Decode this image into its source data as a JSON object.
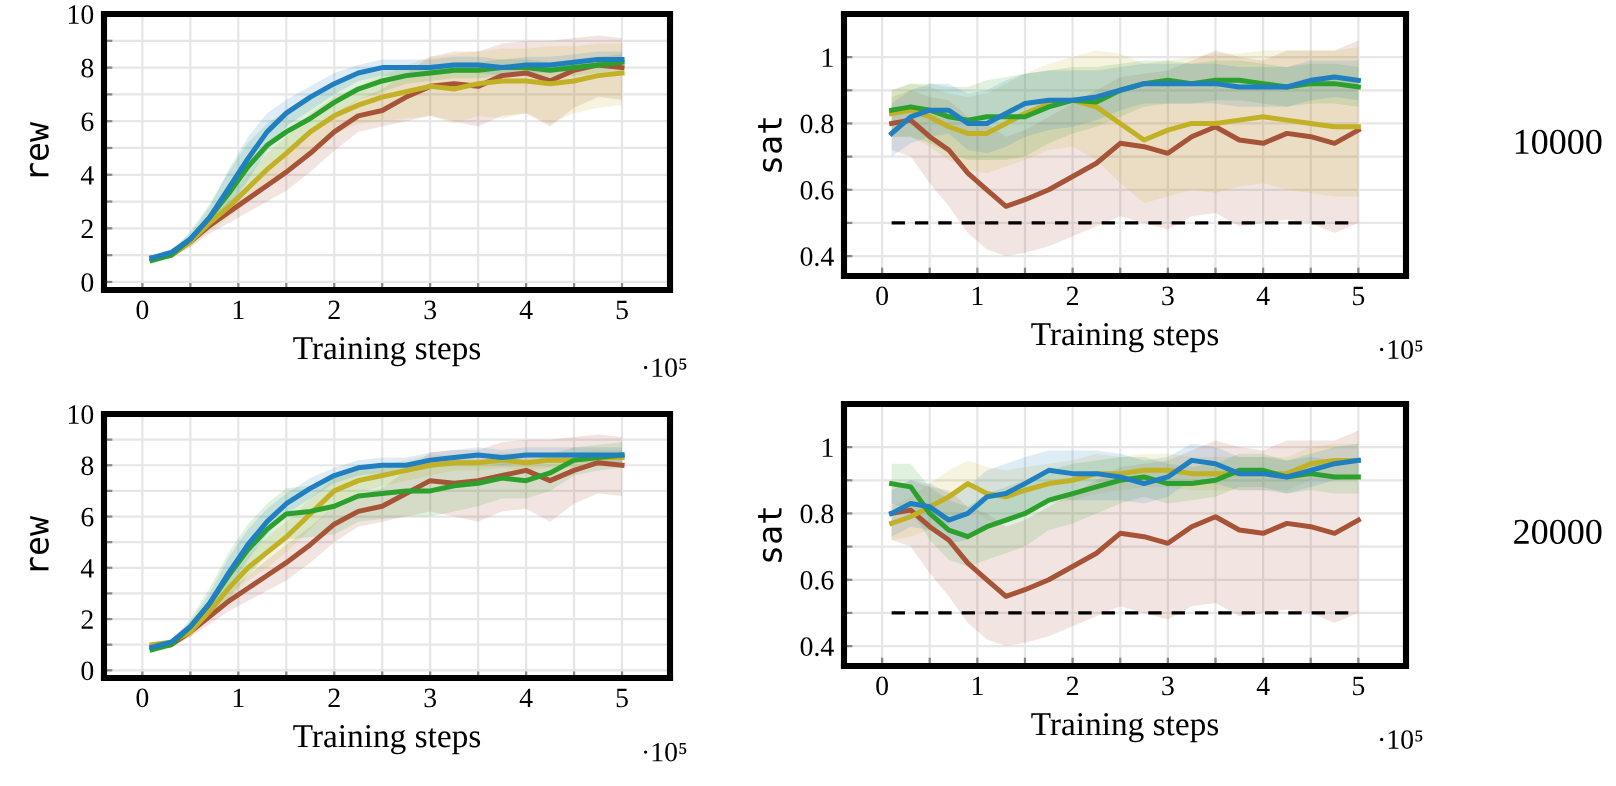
{
  "chart_data": [
    {
      "type": "line",
      "ylabel": "rew",
      "xlabel": "Training steps",
      "grid": true,
      "xlim": [
        -0.4,
        5.5
      ],
      "ylim": [
        -0.3,
        10
      ],
      "xticks": [
        0,
        {
          "value": 0.5,
          "label": null
        },
        1,
        {
          "value": 1.5,
          "label": null
        },
        2,
        {
          "value": 2.5,
          "label": null
        },
        3,
        {
          "value": 3.5,
          "label": null
        },
        4,
        {
          "value": 4.5,
          "label": null
        },
        5
      ],
      "yticks": [
        0,
        {
          "value": 1,
          "label": null
        },
        2,
        {
          "value": 3,
          "label": null
        },
        4,
        {
          "value": 5,
          "label": null
        },
        6,
        {
          "value": 7,
          "label": null
        },
        8,
        {
          "value": 9,
          "label": null
        },
        10
      ],
      "annotations": [
        "·10⁵"
      ],
      "x": [
        0.1,
        0.3,
        0.5,
        0.7,
        0.9,
        1.1,
        1.3,
        1.5,
        1.75,
        2.0,
        2.25,
        2.5,
        2.75,
        3.0,
        3.25,
        3.5,
        3.75,
        4.0,
        4.25,
        4.5,
        4.75,
        5.0
      ],
      "series": [
        {
          "color": "#a65338",
          "values": [
            0.9,
            1.0,
            1.5,
            2.1,
            2.6,
            3.1,
            3.6,
            4.1,
            4.8,
            5.6,
            6.2,
            6.4,
            6.9,
            7.3,
            7.4,
            7.3,
            7.7,
            7.8,
            7.5,
            7.9,
            8.1,
            8.0
          ],
          "lower": [
            0.8,
            0.9,
            1.3,
            1.8,
            2.2,
            2.6,
            3.0,
            3.4,
            4.1,
            4.9,
            5.6,
            5.8,
            6.0,
            6.2,
            6.0,
            5.8,
            6.2,
            6.3,
            5.8,
            6.5,
            6.9,
            6.8
          ],
          "upper": [
            1.0,
            1.1,
            1.7,
            2.4,
            3.0,
            3.6,
            4.2,
            4.8,
            5.5,
            6.3,
            6.8,
            7.2,
            7.8,
            8.4,
            8.6,
            8.6,
            8.9,
            9.0,
            9.0,
            9.1,
            9.2,
            9.1
          ]
        },
        {
          "color": "#c2b124",
          "values": [
            0.9,
            1.0,
            1.5,
            2.2,
            2.8,
            3.5,
            4.2,
            4.8,
            5.6,
            6.2,
            6.6,
            6.9,
            7.1,
            7.3,
            7.2,
            7.4,
            7.5,
            7.5,
            7.4,
            7.5,
            7.7,
            7.8
          ],
          "lower": [
            0.8,
            0.9,
            1.3,
            1.9,
            2.4,
            3.0,
            3.6,
            4.2,
            4.9,
            5.5,
            5.9,
            6.0,
            6.1,
            6.2,
            5.9,
            6.2,
            6.1,
            6.3,
            5.9,
            6.3,
            6.5,
            6.6
          ],
          "upper": [
            1.0,
            1.1,
            1.7,
            2.5,
            3.2,
            4.0,
            4.8,
            5.4,
            6.3,
            6.9,
            7.3,
            7.7,
            8.1,
            8.4,
            8.5,
            8.6,
            8.7,
            8.7,
            8.8,
            8.8,
            8.9,
            8.9
          ]
        },
        {
          "color": "#2ca02c",
          "values": [
            0.8,
            1.0,
            1.6,
            2.4,
            3.3,
            4.3,
            5.1,
            5.6,
            6.1,
            6.7,
            7.2,
            7.5,
            7.7,
            7.8,
            7.9,
            7.9,
            8.0,
            8.0,
            7.9,
            8.0,
            8.1,
            8.2
          ],
          "lower": [
            0.7,
            0.9,
            1.4,
            2.0,
            2.6,
            3.4,
            4.3,
            4.9,
            5.5,
            6.2,
            6.8,
            7.1,
            7.4,
            7.5,
            7.6,
            7.6,
            7.7,
            7.7,
            7.6,
            7.7,
            7.8,
            7.9
          ],
          "upper": [
            0.9,
            1.1,
            1.9,
            2.9,
            4.1,
            5.2,
            5.9,
            6.4,
            6.8,
            7.3,
            7.7,
            7.9,
            8.0,
            8.1,
            8.2,
            8.2,
            8.3,
            8.3,
            8.2,
            8.3,
            8.4,
            8.5
          ]
        },
        {
          "color": "#1f7fc0",
          "values": [
            0.9,
            1.1,
            1.6,
            2.4,
            3.5,
            4.6,
            5.6,
            6.3,
            6.9,
            7.4,
            7.8,
            8.0,
            8.0,
            8.0,
            8.1,
            8.1,
            8.0,
            8.1,
            8.1,
            8.2,
            8.3,
            8.3
          ],
          "lower": [
            0.8,
            1.0,
            1.4,
            2.0,
            2.8,
            3.8,
            4.9,
            5.8,
            6.4,
            7.0,
            7.5,
            7.7,
            7.7,
            7.7,
            7.8,
            7.8,
            7.7,
            7.8,
            7.8,
            7.9,
            8.0,
            8.0
          ],
          "upper": [
            1.0,
            1.2,
            1.8,
            2.8,
            4.2,
            5.4,
            6.3,
            6.8,
            7.3,
            7.8,
            8.1,
            8.3,
            8.3,
            8.3,
            8.4,
            8.4,
            8.3,
            8.4,
            8.4,
            8.5,
            8.6,
            8.6
          ]
        }
      ]
    },
    {
      "type": "line",
      "ylabel": "sat",
      "xlabel": "Training steps",
      "grid": true,
      "xlim": [
        -0.4,
        5.5
      ],
      "ylim": [
        0.34,
        1.13
      ],
      "xticks": [
        0,
        {
          "value": 0.5,
          "label": null
        },
        1,
        {
          "value": 1.5,
          "label": null
        },
        2,
        {
          "value": 2.5,
          "label": null
        },
        3,
        {
          "value": 3.5,
          "label": null
        },
        4,
        {
          "value": 4.5,
          "label": null
        },
        5
      ],
      "yticks": [
        0.4,
        {
          "value": 0.5,
          "label": null
        },
        0.6,
        {
          "value": 0.7,
          "label": null
        },
        0.8,
        {
          "value": 0.9,
          "label": null
        },
        1
      ],
      "annotations": [
        "·10⁵",
        "10000"
      ],
      "ref_lines": [
        {
          "axis": "y",
          "value": 0.5,
          "color": "#000000",
          "line_style": "dashed"
        }
      ],
      "x": [
        0.1,
        0.3,
        0.5,
        0.7,
        0.9,
        1.1,
        1.3,
        1.5,
        1.75,
        2.0,
        2.25,
        2.5,
        2.75,
        3.0,
        3.25,
        3.5,
        3.75,
        4.0,
        4.25,
        4.5,
        4.75,
        5.0
      ],
      "series": [
        {
          "color": "#a65338",
          "values": [
            0.8,
            0.81,
            0.76,
            0.72,
            0.65,
            0.6,
            0.55,
            0.57,
            0.6,
            0.64,
            0.68,
            0.74,
            0.73,
            0.71,
            0.76,
            0.79,
            0.75,
            0.74,
            0.77,
            0.76,
            0.74,
            0.78
          ],
          "lower": [
            0.72,
            0.7,
            0.62,
            0.55,
            0.47,
            0.42,
            0.4,
            0.41,
            0.43,
            0.46,
            0.49,
            0.52,
            0.5,
            0.48,
            0.52,
            0.53,
            0.49,
            0.5,
            0.51,
            0.5,
            0.47,
            0.5
          ],
          "upper": [
            0.88,
            0.9,
            0.88,
            0.87,
            0.82,
            0.8,
            0.76,
            0.78,
            0.82,
            0.86,
            0.9,
            0.94,
            0.95,
            0.96,
            0.99,
            1.02,
            1.0,
            0.99,
            1.02,
            1.02,
            1.02,
            1.05
          ]
        },
        {
          "color": "#c2b124",
          "values": [
            0.83,
            0.84,
            0.82,
            0.79,
            0.77,
            0.77,
            0.8,
            0.83,
            0.86,
            0.87,
            0.85,
            0.8,
            0.75,
            0.78,
            0.8,
            0.8,
            0.81,
            0.82,
            0.81,
            0.8,
            0.79,
            0.79
          ],
          "lower": [
            0.76,
            0.76,
            0.73,
            0.69,
            0.66,
            0.65,
            0.67,
            0.69,
            0.72,
            0.73,
            0.69,
            0.62,
            0.56,
            0.58,
            0.6,
            0.59,
            0.61,
            0.62,
            0.6,
            0.59,
            0.58,
            0.58
          ],
          "upper": [
            0.9,
            0.92,
            0.91,
            0.89,
            0.88,
            0.89,
            0.92,
            0.95,
            0.98,
            1.0,
            1.02,
            1.01,
            0.98,
            0.99,
            1.0,
            1.01,
            1.01,
            1.02,
            1.02,
            1.02,
            1.02,
            1.03
          ]
        },
        {
          "color": "#2ca02c",
          "values": [
            0.84,
            0.85,
            0.84,
            0.82,
            0.81,
            0.82,
            0.82,
            0.82,
            0.85,
            0.87,
            0.865,
            0.9,
            0.92,
            0.93,
            0.92,
            0.93,
            0.93,
            0.92,
            0.91,
            0.92,
            0.92,
            0.91
          ],
          "lower": [
            0.76,
            0.76,
            0.74,
            0.71,
            0.69,
            0.69,
            0.69,
            0.7,
            0.74,
            0.77,
            0.79,
            0.82,
            0.85,
            0.86,
            0.86,
            0.87,
            0.87,
            0.86,
            0.85,
            0.86,
            0.86,
            0.85
          ],
          "upper": [
            0.9,
            0.92,
            0.92,
            0.91,
            0.91,
            0.93,
            0.94,
            0.95,
            0.96,
            0.97,
            0.97,
            0.98,
            0.99,
            0.99,
            0.98,
            0.99,
            0.99,
            0.98,
            0.97,
            0.98,
            0.98,
            0.97
          ]
        },
        {
          "color": "#1f7fc0",
          "values": [
            0.77,
            0.82,
            0.84,
            0.84,
            0.8,
            0.8,
            0.83,
            0.86,
            0.87,
            0.87,
            0.88,
            0.9,
            0.92,
            0.92,
            0.92,
            0.92,
            0.91,
            0.91,
            0.91,
            0.93,
            0.94,
            0.93
          ],
          "lower": [
            0.7,
            0.74,
            0.76,
            0.77,
            0.72,
            0.71,
            0.73,
            0.76,
            0.78,
            0.79,
            0.81,
            0.84,
            0.86,
            0.86,
            0.86,
            0.86,
            0.85,
            0.85,
            0.85,
            0.87,
            0.88,
            0.87
          ],
          "upper": [
            0.86,
            0.9,
            0.92,
            0.92,
            0.89,
            0.9,
            0.93,
            0.95,
            0.96,
            0.96,
            0.96,
            0.97,
            0.98,
            0.98,
            0.98,
            0.98,
            0.97,
            0.97,
            0.97,
            0.99,
            0.99,
            0.99
          ]
        }
      ]
    },
    {
      "type": "line",
      "ylabel": "rew",
      "xlabel": "Training steps",
      "grid": true,
      "xlim": [
        -0.4,
        5.5
      ],
      "ylim": [
        -0.3,
        10
      ],
      "xticks": [
        0,
        {
          "value": 0.5,
          "label": null
        },
        1,
        {
          "value": 1.5,
          "label": null
        },
        2,
        {
          "value": 2.5,
          "label": null
        },
        3,
        {
          "value": 3.5,
          "label": null
        },
        4,
        {
          "value": 4.5,
          "label": null
        },
        5
      ],
      "yticks": [
        0,
        {
          "value": 1,
          "label": null
        },
        2,
        {
          "value": 3,
          "label": null
        },
        4,
        {
          "value": 5,
          "label": null
        },
        6,
        {
          "value": 7,
          "label": null
        },
        8,
        {
          "value": 9,
          "label": null
        },
        10
      ],
      "annotations": [
        "·10⁵"
      ],
      "x": [
        0.1,
        0.3,
        0.5,
        0.7,
        0.9,
        1.1,
        1.3,
        1.5,
        1.75,
        2.0,
        2.25,
        2.5,
        2.75,
        3.0,
        3.25,
        3.5,
        3.75,
        4.0,
        4.25,
        4.5,
        4.75,
        5.0
      ],
      "series": [
        {
          "color": "#a65338",
          "values": [
            0.9,
            1.0,
            1.5,
            2.1,
            2.7,
            3.2,
            3.7,
            4.2,
            4.9,
            5.7,
            6.2,
            6.4,
            6.9,
            7.4,
            7.3,
            7.4,
            7.6,
            7.8,
            7.4,
            7.8,
            8.1,
            8.0
          ],
          "lower": [
            0.8,
            0.9,
            1.3,
            1.8,
            2.3,
            2.7,
            3.1,
            3.5,
            4.2,
            5.0,
            5.6,
            5.8,
            6.0,
            6.2,
            6.0,
            5.8,
            6.2,
            6.3,
            5.8,
            6.5,
            6.9,
            6.8
          ],
          "upper": [
            1.0,
            1.1,
            1.7,
            2.4,
            3.1,
            3.7,
            4.3,
            4.9,
            5.6,
            6.4,
            6.8,
            7.1,
            7.8,
            8.5,
            8.6,
            8.6,
            8.9,
            9.0,
            9.0,
            9.1,
            9.2,
            9.1
          ]
        },
        {
          "color": "#c2b124",
          "values": [
            1.0,
            1.1,
            1.5,
            2.3,
            3.2,
            4.0,
            4.6,
            5.2,
            6.1,
            7.0,
            7.4,
            7.6,
            7.8,
            8.0,
            8.1,
            8.1,
            8.2,
            8.1,
            8.2,
            8.2,
            8.3,
            8.3
          ],
          "lower": [
            0.9,
            1.0,
            1.3,
            2.0,
            2.8,
            3.5,
            4.0,
            4.6,
            5.5,
            6.4,
            6.9,
            7.2,
            7.4,
            7.6,
            7.8,
            7.8,
            7.9,
            7.8,
            7.9,
            7.9,
            8.0,
            8.0
          ],
          "upper": [
            1.1,
            1.2,
            1.7,
            2.6,
            3.6,
            4.5,
            5.2,
            5.8,
            6.7,
            7.5,
            7.8,
            8.0,
            8.2,
            8.4,
            8.4,
            8.4,
            8.5,
            8.4,
            8.5,
            8.5,
            8.6,
            8.6
          ]
        },
        {
          "color": "#2ca02c",
          "values": [
            0.8,
            1.0,
            1.7,
            2.6,
            3.7,
            4.7,
            5.5,
            6.1,
            6.2,
            6.4,
            6.8,
            6.9,
            7.0,
            7.0,
            7.2,
            7.3,
            7.5,
            7.4,
            7.7,
            8.2,
            8.3,
            8.4
          ],
          "lower": [
            0.7,
            0.9,
            1.4,
            2.0,
            2.8,
            3.7,
            4.5,
            5.1,
            5.2,
            5.3,
            5.8,
            5.9,
            6.0,
            6.0,
            6.2,
            6.4,
            6.7,
            6.7,
            7.0,
            7.6,
            7.8,
            7.9
          ],
          "upper": [
            0.9,
            1.1,
            2.0,
            3.2,
            4.6,
            5.7,
            6.5,
            7.1,
            7.2,
            7.5,
            7.8,
            7.9,
            8.0,
            8.0,
            8.2,
            8.2,
            8.3,
            8.1,
            8.4,
            8.7,
            8.8,
            8.9
          ]
        },
        {
          "color": "#1f7fc0",
          "values": [
            0.9,
            1.1,
            1.7,
            2.6,
            3.8,
            4.9,
            5.8,
            6.5,
            7.1,
            7.6,
            7.9,
            8.0,
            8.0,
            8.2,
            8.3,
            8.4,
            8.3,
            8.4,
            8.4,
            8.4,
            8.4,
            8.4
          ],
          "lower": [
            0.8,
            1.0,
            1.5,
            2.2,
            3.2,
            4.3,
            5.3,
            6.1,
            6.7,
            7.3,
            7.6,
            7.7,
            7.7,
            7.9,
            8.0,
            8.1,
            8.0,
            8.1,
            8.1,
            8.1,
            8.1,
            8.1
          ],
          "upper": [
            1.0,
            1.2,
            1.9,
            3.0,
            4.4,
            5.5,
            6.3,
            6.9,
            7.5,
            7.9,
            8.2,
            8.3,
            8.3,
            8.5,
            8.6,
            8.7,
            8.6,
            8.7,
            8.7,
            8.7,
            8.7,
            8.7
          ]
        }
      ]
    },
    {
      "type": "line",
      "ylabel": "sat",
      "xlabel": "Training steps",
      "grid": true,
      "xlim": [
        -0.4,
        5.5
      ],
      "ylim": [
        0.34,
        1.13
      ],
      "xticks": [
        0,
        {
          "value": 0.5,
          "label": null
        },
        1,
        {
          "value": 1.5,
          "label": null
        },
        2,
        {
          "value": 2.5,
          "label": null
        },
        3,
        {
          "value": 3.5,
          "label": null
        },
        4,
        {
          "value": 4.5,
          "label": null
        },
        5
      ],
      "yticks": [
        0.4,
        {
          "value": 0.5,
          "label": null
        },
        0.6,
        {
          "value": 0.7,
          "label": null
        },
        0.8,
        {
          "value": 0.9,
          "label": null
        },
        1
      ],
      "annotations": [
        "·10⁵",
        "20000"
      ],
      "ref_lines": [
        {
          "axis": "y",
          "value": 0.5,
          "color": "#000000",
          "line_style": "dashed"
        }
      ],
      "x": [
        0.1,
        0.3,
        0.5,
        0.7,
        0.9,
        1.1,
        1.3,
        1.5,
        1.75,
        2.0,
        2.25,
        2.5,
        2.75,
        3.0,
        3.25,
        3.5,
        3.75,
        4.0,
        4.25,
        4.5,
        4.75,
        5.0
      ],
      "series": [
        {
          "color": "#a65338",
          "values": [
            0.8,
            0.81,
            0.76,
            0.72,
            0.65,
            0.6,
            0.55,
            0.57,
            0.6,
            0.64,
            0.68,
            0.74,
            0.73,
            0.71,
            0.76,
            0.79,
            0.75,
            0.74,
            0.77,
            0.76,
            0.74,
            0.78
          ],
          "lower": [
            0.72,
            0.7,
            0.62,
            0.55,
            0.47,
            0.42,
            0.4,
            0.41,
            0.43,
            0.46,
            0.49,
            0.52,
            0.5,
            0.48,
            0.52,
            0.53,
            0.49,
            0.5,
            0.51,
            0.5,
            0.47,
            0.5
          ],
          "upper": [
            0.88,
            0.9,
            0.88,
            0.87,
            0.82,
            0.8,
            0.76,
            0.78,
            0.82,
            0.86,
            0.9,
            0.94,
            0.95,
            0.96,
            0.99,
            1.02,
            1.0,
            0.99,
            1.02,
            1.02,
            1.02,
            1.05
          ]
        },
        {
          "color": "#c2b124",
          "values": [
            0.77,
            0.79,
            0.82,
            0.85,
            0.89,
            0.86,
            0.85,
            0.87,
            0.89,
            0.9,
            0.92,
            0.92,
            0.93,
            0.93,
            0.92,
            0.92,
            0.92,
            0.92,
            0.92,
            0.95,
            0.96,
            0.96
          ],
          "lower": [
            0.72,
            0.73,
            0.75,
            0.77,
            0.82,
            0.78,
            0.77,
            0.8,
            0.83,
            0.84,
            0.86,
            0.87,
            0.88,
            0.88,
            0.87,
            0.87,
            0.87,
            0.87,
            0.87,
            0.9,
            0.91,
            0.91
          ],
          "upper": [
            0.82,
            0.85,
            0.89,
            0.93,
            0.96,
            0.94,
            0.93,
            0.94,
            0.95,
            0.96,
            0.98,
            0.97,
            0.98,
            0.98,
            0.97,
            0.97,
            0.97,
            0.97,
            0.97,
            1.0,
            1.01,
            1.01
          ]
        },
        {
          "color": "#2ca02c",
          "values": [
            0.89,
            0.88,
            0.8,
            0.75,
            0.73,
            0.76,
            0.78,
            0.8,
            0.84,
            0.86,
            0.88,
            0.9,
            0.91,
            0.89,
            0.89,
            0.9,
            0.93,
            0.93,
            0.91,
            0.92,
            0.91,
            0.91
          ],
          "lower": [
            0.83,
            0.81,
            0.72,
            0.66,
            0.64,
            0.66,
            0.68,
            0.7,
            0.75,
            0.77,
            0.8,
            0.83,
            0.85,
            0.83,
            0.84,
            0.85,
            0.88,
            0.88,
            0.86,
            0.87,
            0.86,
            0.86
          ],
          "upper": [
            0.95,
            0.95,
            0.88,
            0.84,
            0.82,
            0.86,
            0.88,
            0.9,
            0.93,
            0.95,
            0.96,
            0.97,
            0.97,
            0.95,
            0.94,
            0.95,
            0.98,
            0.98,
            0.96,
            0.97,
            0.96,
            0.96
          ]
        },
        {
          "color": "#1f7fc0",
          "values": [
            0.8,
            0.83,
            0.82,
            0.78,
            0.8,
            0.85,
            0.86,
            0.89,
            0.93,
            0.92,
            0.92,
            0.91,
            0.89,
            0.91,
            0.96,
            0.95,
            0.92,
            0.92,
            0.91,
            0.93,
            0.95,
            0.96
          ],
          "lower": [
            0.73,
            0.76,
            0.75,
            0.71,
            0.72,
            0.77,
            0.78,
            0.81,
            0.85,
            0.84,
            0.84,
            0.84,
            0.83,
            0.85,
            0.9,
            0.89,
            0.87,
            0.87,
            0.86,
            0.88,
            0.9,
            0.91
          ],
          "upper": [
            0.87,
            0.9,
            0.89,
            0.86,
            0.88,
            0.93,
            0.95,
            0.97,
            0.99,
            0.99,
            0.99,
            0.98,
            0.96,
            0.97,
            1.01,
            1.0,
            0.97,
            0.97,
            0.96,
            0.98,
            1.0,
            1.01
          ]
        }
      ]
    }
  ]
}
